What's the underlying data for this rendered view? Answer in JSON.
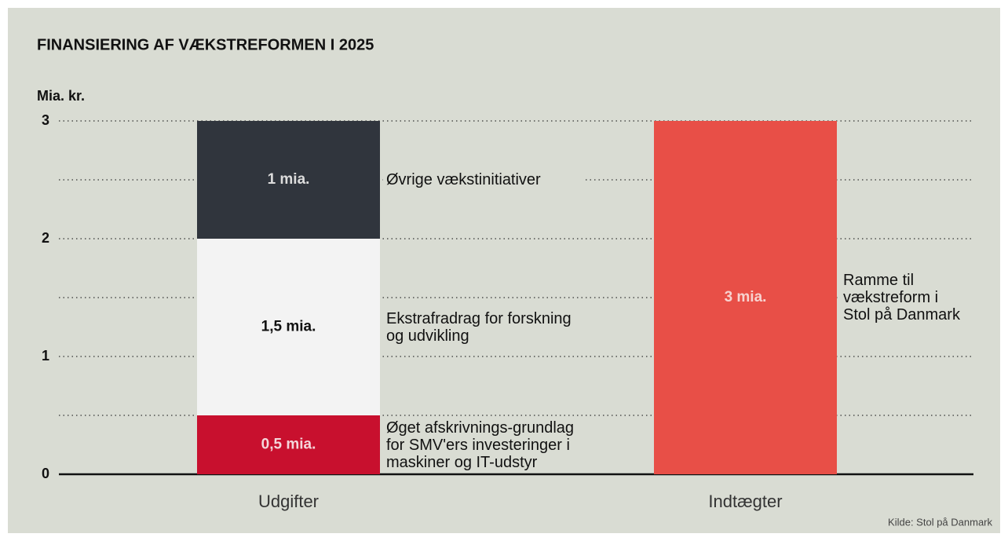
{
  "chart_data": {
    "type": "stacked_bar",
    "title": "FINANSIERING AF VÆKSTREFORMEN I 2025",
    "y_label": "Mia. kr.",
    "source": "Kilde: Stol på Danmark",
    "categories": [
      "Udgifter",
      "Indtægter"
    ],
    "series": [
      {
        "name": "Øget afskrivnings-grundlag for SMV'ers investeringer i maskiner og IT-udstyr",
        "color": "#c8102e",
        "label_color": "#f4d6da",
        "values": [
          0.5,
          null
        ],
        "value_labels": [
          "0,5 mia.",
          null
        ]
      },
      {
        "name": "Ekstrafradrag for forskning og udvikling",
        "color": "#f3f3f3",
        "label_color": "#111111",
        "values": [
          1.5,
          null
        ],
        "value_labels": [
          "1,5 mia.",
          null
        ]
      },
      {
        "name": "Øvrige vækstinitiativer",
        "color": "#30353d",
        "label_color": "#dcdcdc",
        "values": [
          1,
          null
        ],
        "value_labels": [
          "1 mia.",
          null
        ]
      },
      {
        "name": "Ramme til vækstreform i Stol på Danmark",
        "color": "#e84f47",
        "label_color": "#f7d2cf",
        "values": [
          null,
          3
        ],
        "value_labels": [
          null,
          "3 mia."
        ]
      }
    ],
    "ylim": [
      0,
      3
    ],
    "yticks": [
      0,
      1,
      2,
      3
    ],
    "minor_yticks": [
      0.5,
      1.5,
      2.5
    ],
    "grid": true
  }
}
